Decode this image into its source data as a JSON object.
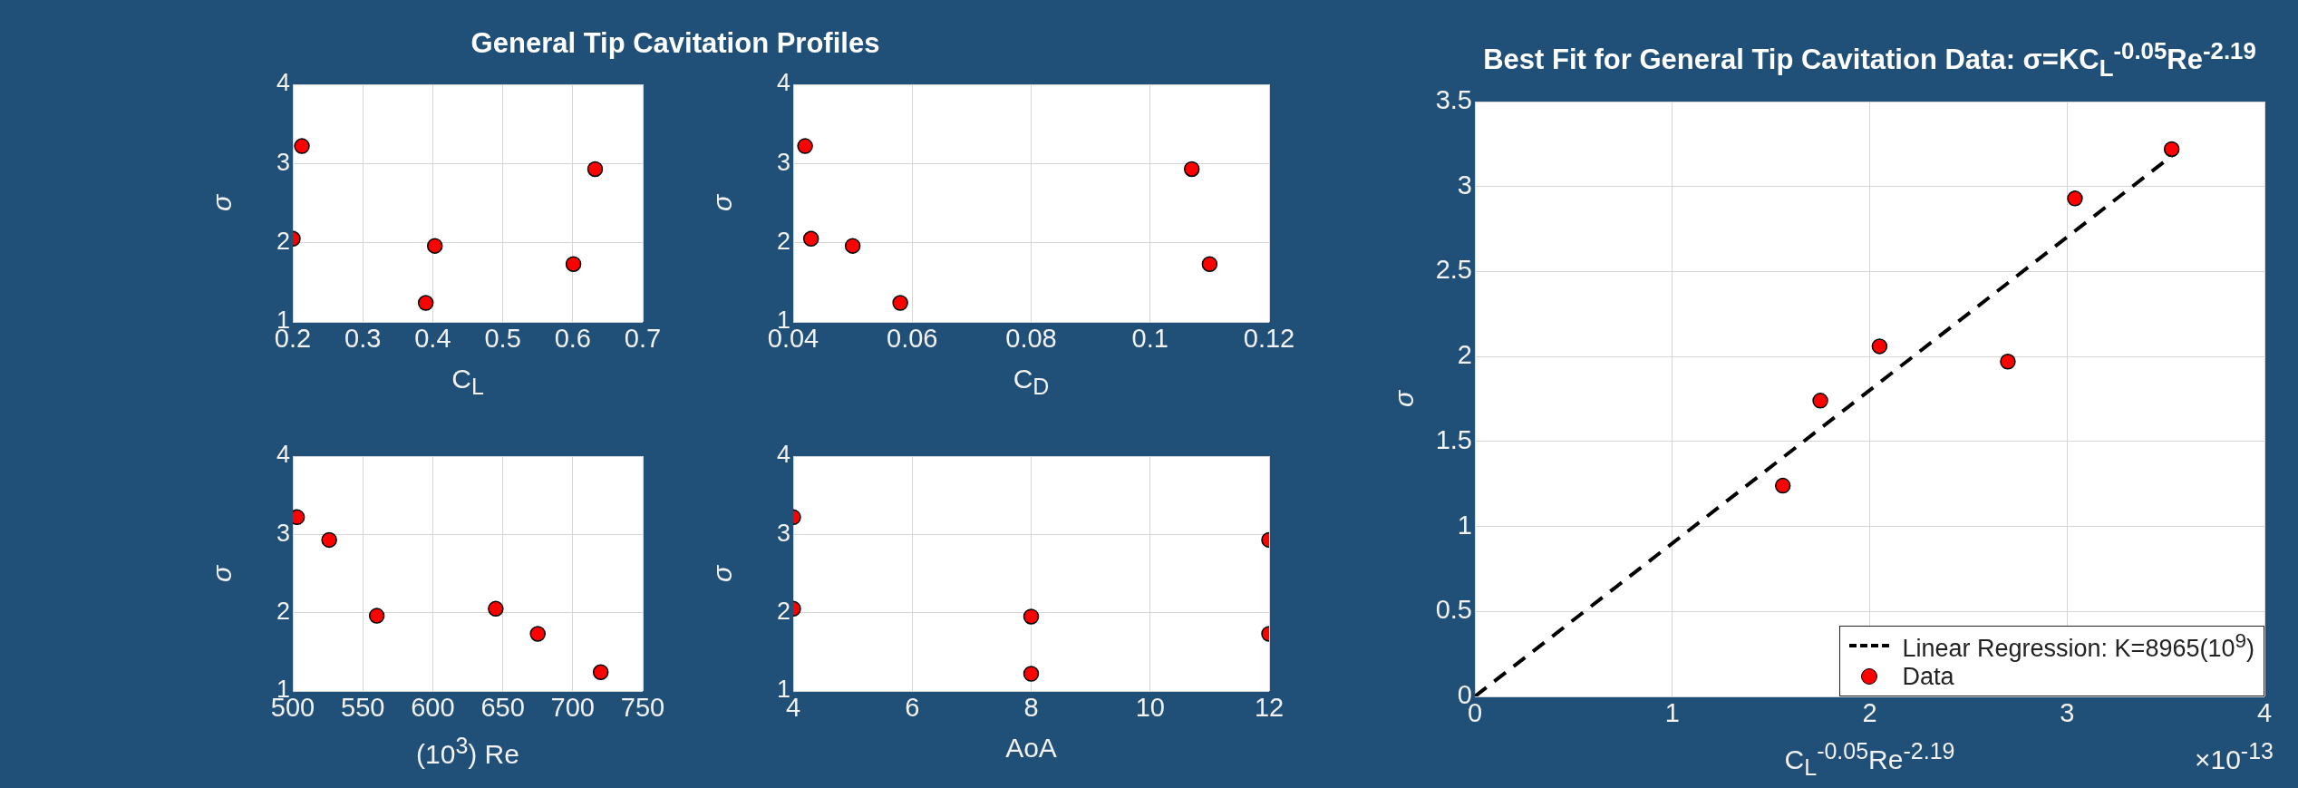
{
  "chart_data": [
    {
      "type": "scatter",
      "title": "General Tip Cavitation Profiles",
      "xlabel": "C$_{L}$",
      "ylabel": "σ",
      "color": "#ff0000",
      "marker": "circle",
      "grid": true,
      "x": [
        0.2,
        0.213,
        0.39,
        0.403,
        0.601,
        0.632
      ],
      "values": [
        2.05,
        3.22,
        1.24,
        1.96,
        1.73,
        2.93
      ],
      "xlim": [
        0.2,
        0.7
      ],
      "xticks": [
        0.2,
        0.3,
        0.4,
        0.5,
        0.6,
        0.7
      ],
      "ylim": [
        1,
        4
      ],
      "yticks": [
        1,
        2,
        3,
        4
      ]
    },
    {
      "type": "scatter",
      "xlabel": "C$_{D}$",
      "ylabel": "σ",
      "color": "#ff0000",
      "marker": "circle",
      "grid": true,
      "x": [
        0.042,
        0.043,
        0.05,
        0.058,
        0.107,
        0.11
      ],
      "values": [
        3.22,
        2.05,
        1.96,
        1.24,
        2.93,
        1.73
      ],
      "xlim": [
        0.04,
        0.12
      ],
      "xticks": [
        0.04,
        0.06,
        0.08,
        0.1,
        0.12
      ],
      "ylim": [
        1,
        4
      ],
      "yticks": [
        1,
        2,
        3,
        4
      ]
    },
    {
      "type": "scatter",
      "xlabel": "(10$^{3}$) Re",
      "ylabel": "σ",
      "color": "#ff0000",
      "marker": "circle",
      "grid": true,
      "x": [
        503,
        526,
        560,
        645,
        675,
        720
      ],
      "values": [
        3.22,
        2.93,
        1.96,
        2.05,
        1.73,
        1.24
      ],
      "xlim": [
        500,
        750
      ],
      "xticks": [
        500,
        550,
        600,
        650,
        700,
        750
      ],
      "ylim": [
        1,
        4
      ],
      "yticks": [
        1,
        2,
        3,
        4
      ]
    },
    {
      "type": "scatter",
      "xlabel": "AoA",
      "ylabel": "σ",
      "color": "#ff0000",
      "marker": "circle",
      "grid": true,
      "x": [
        4,
        4,
        8,
        8,
        12,
        12
      ],
      "values": [
        3.22,
        2.05,
        1.95,
        1.22,
        2.93,
        1.73
      ],
      "xlim": [
        4,
        12
      ],
      "xticks": [
        4,
        6,
        8,
        10,
        12
      ],
      "ylim": [
        1,
        4
      ],
      "yticks": [
        1,
        2,
        3,
        4
      ]
    },
    {
      "type": "scatter",
      "title": "Best Fit for General Tip Cavitation Data: σ=KC$_{L}$$^{-0.05}$Re$^{-2.19}$",
      "xlabel": "C$_{L}$$^{-0.05}$Re$^{-2.19}$",
      "ylabel": "σ",
      "grid": true,
      "legend": "bottom right",
      "annotations": [
        "×10$^{-13}$"
      ],
      "series": [
        {
          "name": "Linear Regression: K=8965(10$^{9}$)",
          "type": "line",
          "color": "#000000",
          "line_style": "dashed",
          "marker": "none",
          "x": [
            0,
            3.53
          ],
          "values": [
            0,
            3.18
          ]
        },
        {
          "name": "Data",
          "type": "scatter",
          "color": "#ff0000",
          "marker": "circle",
          "x": [
            1.56,
            1.75,
            2.05,
            2.7,
            3.04,
            3.53
          ],
          "values": [
            1.24,
            1.74,
            2.06,
            1.97,
            2.93,
            3.22
          ]
        }
      ],
      "xlim": [
        0,
        4
      ],
      "xticks": [
        0,
        1,
        2,
        3,
        4
      ],
      "ylim": [
        0,
        3.5
      ],
      "yticks": [
        0,
        0.5,
        1,
        1.5,
        2,
        2.5,
        3,
        3.5
      ]
    }
  ]
}
